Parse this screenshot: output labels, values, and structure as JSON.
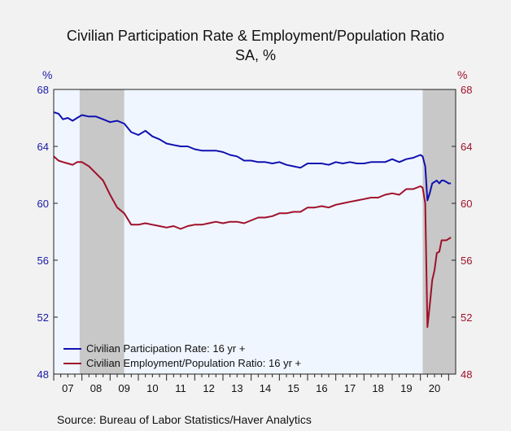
{
  "chart_data": {
    "type": "line",
    "title": "Civilian Participation Rate & Employment/Population Ratio",
    "subtitle": "SA, %",
    "left_axis_unit": "%",
    "right_axis_unit": "%",
    "ylim": [
      48,
      68
    ],
    "yticks": [
      48,
      52,
      56,
      60,
      64,
      68
    ],
    "x_range": [
      2007.0,
      2021.25
    ],
    "x_tick_labels": [
      "07",
      "08",
      "09",
      "10",
      "11",
      "12",
      "13",
      "14",
      "15",
      "16",
      "17",
      "18",
      "19",
      "20"
    ],
    "recessions": [
      [
        2007.92,
        2009.5
      ],
      [
        2020.08,
        2021.25
      ]
    ],
    "colors": {
      "participation": "#1010b0",
      "employment": "#a0102a",
      "plot_bg": "#f0f6ff",
      "recession": "#c8c8c8"
    },
    "legend_position": "bottom-left",
    "series": [
      {
        "name": "Civilian Participation Rate: 16 yr +",
        "color": "#1010b0",
        "points": [
          [
            2007.0,
            66.4
          ],
          [
            2007.17,
            66.3
          ],
          [
            2007.33,
            65.9
          ],
          [
            2007.5,
            66.0
          ],
          [
            2007.67,
            65.8
          ],
          [
            2007.83,
            66.0
          ],
          [
            2008.0,
            66.2
          ],
          [
            2008.25,
            66.1
          ],
          [
            2008.5,
            66.1
          ],
          [
            2008.75,
            65.9
          ],
          [
            2009.0,
            65.7
          ],
          [
            2009.25,
            65.8
          ],
          [
            2009.5,
            65.6
          ],
          [
            2009.75,
            65.0
          ],
          [
            2010.0,
            64.8
          ],
          [
            2010.25,
            65.1
          ],
          [
            2010.5,
            64.7
          ],
          [
            2010.75,
            64.5
          ],
          [
            2011.0,
            64.2
          ],
          [
            2011.25,
            64.1
          ],
          [
            2011.5,
            64.0
          ],
          [
            2011.75,
            64.0
          ],
          [
            2012.0,
            63.8
          ],
          [
            2012.25,
            63.7
          ],
          [
            2012.5,
            63.7
          ],
          [
            2012.75,
            63.7
          ],
          [
            2013.0,
            63.6
          ],
          [
            2013.25,
            63.4
          ],
          [
            2013.5,
            63.3
          ],
          [
            2013.75,
            63.0
          ],
          [
            2014.0,
            63.0
          ],
          [
            2014.25,
            62.9
          ],
          [
            2014.5,
            62.9
          ],
          [
            2014.75,
            62.8
          ],
          [
            2015.0,
            62.9
          ],
          [
            2015.25,
            62.7
          ],
          [
            2015.5,
            62.6
          ],
          [
            2015.75,
            62.5
          ],
          [
            2016.0,
            62.8
          ],
          [
            2016.25,
            62.8
          ],
          [
            2016.5,
            62.8
          ],
          [
            2016.75,
            62.7
          ],
          [
            2017.0,
            62.9
          ],
          [
            2017.25,
            62.8
          ],
          [
            2017.5,
            62.9
          ],
          [
            2017.75,
            62.8
          ],
          [
            2018.0,
            62.8
          ],
          [
            2018.25,
            62.9
          ],
          [
            2018.5,
            62.9
          ],
          [
            2018.75,
            62.9
          ],
          [
            2019.0,
            63.1
          ],
          [
            2019.25,
            62.9
          ],
          [
            2019.5,
            63.1
          ],
          [
            2019.75,
            63.2
          ],
          [
            2020.0,
            63.4
          ],
          [
            2020.08,
            63.3
          ],
          [
            2020.17,
            62.6
          ],
          [
            2020.25,
            60.2
          ],
          [
            2020.33,
            60.7
          ],
          [
            2020.42,
            61.4
          ],
          [
            2020.5,
            61.5
          ],
          [
            2020.58,
            61.6
          ],
          [
            2020.67,
            61.4
          ],
          [
            2020.75,
            61.6
          ],
          [
            2020.83,
            61.6
          ],
          [
            2020.92,
            61.5
          ],
          [
            2021.0,
            61.4
          ],
          [
            2021.08,
            61.4
          ]
        ]
      },
      {
        "name": "Civilian Employment/Population Ratio: 16 yr +",
        "color": "#a0102a",
        "points": [
          [
            2007.0,
            63.3
          ],
          [
            2007.17,
            63.0
          ],
          [
            2007.33,
            62.9
          ],
          [
            2007.5,
            62.8
          ],
          [
            2007.67,
            62.7
          ],
          [
            2007.83,
            62.9
          ],
          [
            2008.0,
            62.9
          ],
          [
            2008.25,
            62.6
          ],
          [
            2008.5,
            62.1
          ],
          [
            2008.75,
            61.6
          ],
          [
            2009.0,
            60.6
          ],
          [
            2009.25,
            59.7
          ],
          [
            2009.5,
            59.3
          ],
          [
            2009.75,
            58.5
          ],
          [
            2010.0,
            58.5
          ],
          [
            2010.25,
            58.6
          ],
          [
            2010.5,
            58.5
          ],
          [
            2010.75,
            58.4
          ],
          [
            2011.0,
            58.3
          ],
          [
            2011.25,
            58.4
          ],
          [
            2011.5,
            58.2
          ],
          [
            2011.75,
            58.4
          ],
          [
            2012.0,
            58.5
          ],
          [
            2012.25,
            58.5
          ],
          [
            2012.5,
            58.6
          ],
          [
            2012.75,
            58.7
          ],
          [
            2013.0,
            58.6
          ],
          [
            2013.25,
            58.7
          ],
          [
            2013.5,
            58.7
          ],
          [
            2013.75,
            58.6
          ],
          [
            2014.0,
            58.8
          ],
          [
            2014.25,
            59.0
          ],
          [
            2014.5,
            59.0
          ],
          [
            2014.75,
            59.1
          ],
          [
            2015.0,
            59.3
          ],
          [
            2015.25,
            59.3
          ],
          [
            2015.5,
            59.4
          ],
          [
            2015.75,
            59.4
          ],
          [
            2016.0,
            59.7
          ],
          [
            2016.25,
            59.7
          ],
          [
            2016.5,
            59.8
          ],
          [
            2016.75,
            59.7
          ],
          [
            2017.0,
            59.9
          ],
          [
            2017.25,
            60.0
          ],
          [
            2017.5,
            60.1
          ],
          [
            2017.75,
            60.2
          ],
          [
            2018.0,
            60.3
          ],
          [
            2018.25,
            60.4
          ],
          [
            2018.5,
            60.4
          ],
          [
            2018.75,
            60.6
          ],
          [
            2019.0,
            60.7
          ],
          [
            2019.25,
            60.6
          ],
          [
            2019.5,
            61.0
          ],
          [
            2019.75,
            61.0
          ],
          [
            2020.0,
            61.2
          ],
          [
            2020.08,
            61.1
          ],
          [
            2020.17,
            60.0
          ],
          [
            2020.25,
            51.3
          ],
          [
            2020.33,
            52.8
          ],
          [
            2020.42,
            54.6
          ],
          [
            2020.5,
            55.3
          ],
          [
            2020.58,
            56.5
          ],
          [
            2020.67,
            56.6
          ],
          [
            2020.75,
            57.4
          ],
          [
            2020.83,
            57.4
          ],
          [
            2020.92,
            57.4
          ],
          [
            2021.0,
            57.5
          ],
          [
            2021.08,
            57.6
          ]
        ]
      }
    ]
  },
  "source": "Source:  Bureau of Labor Statistics/Haver Analytics"
}
